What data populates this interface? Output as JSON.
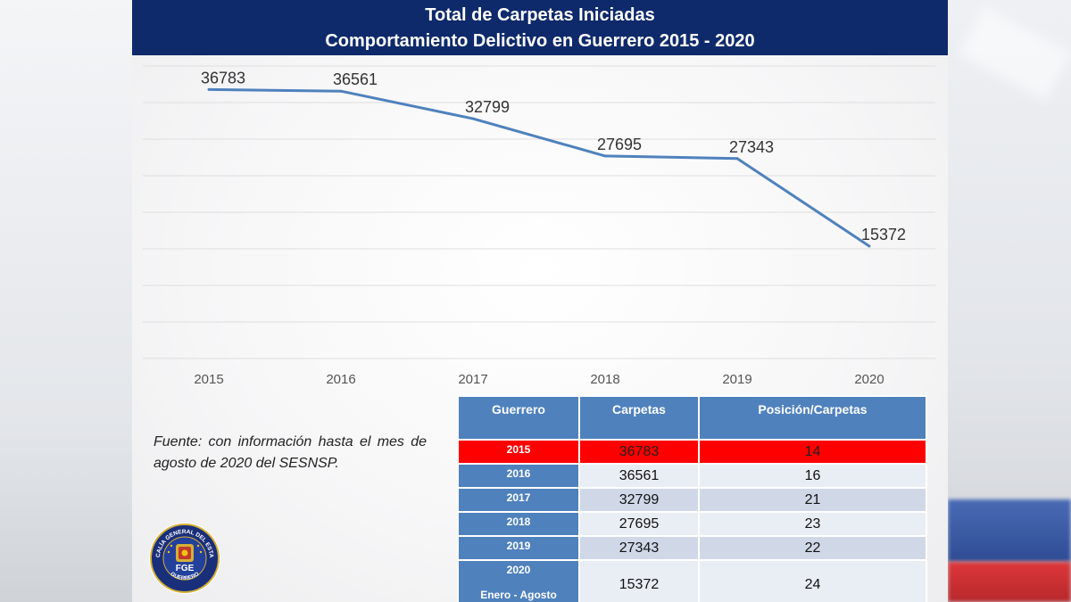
{
  "header": {
    "title_line1": "Total de Carpetas Iniciadas",
    "title_line2": "Comportamiento Delictivo en Guerrero 2015 - 2020"
  },
  "chart_data": {
    "type": "line",
    "categories": [
      "2015",
      "2016",
      "2017",
      "2018",
      "2019",
      "2020"
    ],
    "values": [
      36783,
      36561,
      32799,
      27695,
      27343,
      15372
    ],
    "ylim": [
      0,
      40000
    ],
    "grid": true,
    "legend": "none",
    "data_labels": [
      "36783",
      "36561",
      "32799",
      "27695",
      "27343",
      "15372"
    ],
    "line_color": "#4f81bd"
  },
  "source_note": "Fuente: con información hasta el mes de agosto de 2020 del SESNSP.",
  "logo": {
    "ring_text_top": "FISCALÍA GENERAL DEL ESTADO",
    "ring_text_bottom": "GUERRERO",
    "center_text": "FGE",
    "icon": "state-seal-icon"
  },
  "table": {
    "headers": [
      "Guerrero",
      "Carpetas",
      "Posición/Carpetas"
    ],
    "rows": [
      {
        "year": "2015",
        "sub": "",
        "carpetas": "36783",
        "posicion": "14"
      },
      {
        "year": "2016",
        "sub": "",
        "carpetas": "36561",
        "posicion": "16"
      },
      {
        "year": "2017",
        "sub": "",
        "carpetas": "32799",
        "posicion": "21"
      },
      {
        "year": "2018",
        "sub": "",
        "carpetas": "27695",
        "posicion": "23"
      },
      {
        "year": "2019",
        "sub": "",
        "carpetas": "27343",
        "posicion": "22"
      },
      {
        "year": "2020",
        "sub": "Enero - Agosto",
        "carpetas": "15372",
        "posicion": "24"
      }
    ],
    "highlight_color": "#ff0000",
    "header_color": "#4f81bd"
  }
}
